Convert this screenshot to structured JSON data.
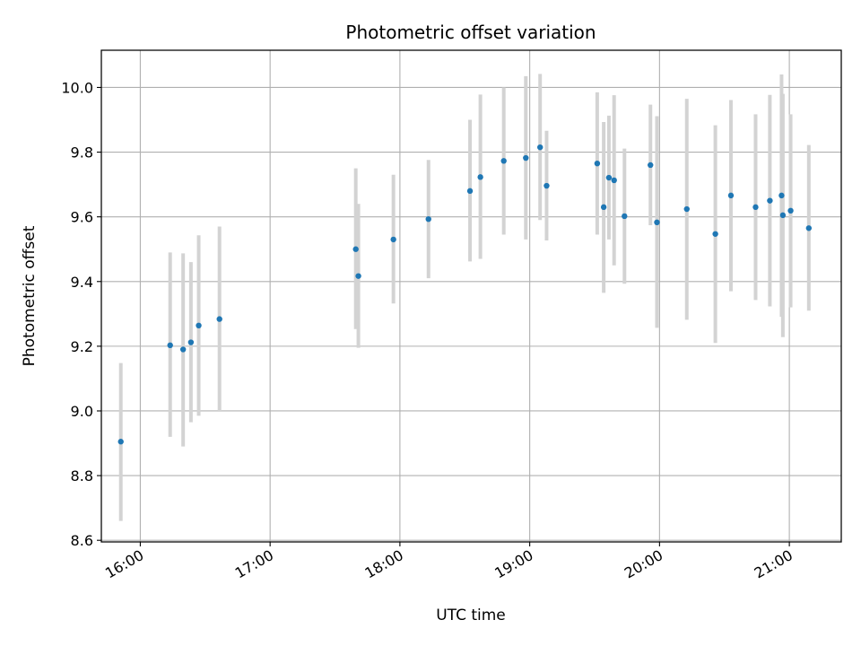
{
  "chart_data": {
    "type": "scatter",
    "title": "Photometric offset variation",
    "xlabel": "UTC time",
    "ylabel": "Photometric offset",
    "x_unit": "hours",
    "xlim": [
      15.7,
      21.4
    ],
    "ylim": [
      8.595,
      10.115
    ],
    "grid": true,
    "x_ticks": [
      {
        "value": 16,
        "label": "16:00"
      },
      {
        "value": 17,
        "label": "17:00"
      },
      {
        "value": 18,
        "label": "18:00"
      },
      {
        "value": 19,
        "label": "19:00"
      },
      {
        "value": 20,
        "label": "20:00"
      },
      {
        "value": 21,
        "label": "21:00"
      }
    ],
    "y_ticks": [
      {
        "value": 8.6,
        "label": "8.6"
      },
      {
        "value": 8.8,
        "label": "8.8"
      },
      {
        "value": 9.0,
        "label": "9.0"
      },
      {
        "value": 9.2,
        "label": "9.2"
      },
      {
        "value": 9.4,
        "label": "9.4"
      },
      {
        "value": 9.6,
        "label": "9.6"
      },
      {
        "value": 9.8,
        "label": "9.8"
      },
      {
        "value": 10.0,
        "label": "10.0"
      }
    ],
    "series": [
      {
        "name": "offset",
        "point_color": "#1f77b4",
        "errorbar_color": "#d3d3d3",
        "points": [
          {
            "x": 15.85,
            "y": 8.905,
            "ylow": 8.66,
            "yhigh": 9.148
          },
          {
            "x": 16.23,
            "y": 9.203,
            "ylow": 8.92,
            "yhigh": 9.49
          },
          {
            "x": 16.33,
            "y": 9.19,
            "ylow": 8.89,
            "yhigh": 9.487
          },
          {
            "x": 16.39,
            "y": 9.212,
            "ylow": 8.965,
            "yhigh": 9.46
          },
          {
            "x": 16.45,
            "y": 9.264,
            "ylow": 8.985,
            "yhigh": 9.543
          },
          {
            "x": 16.61,
            "y": 9.284,
            "ylow": 9.0,
            "yhigh": 9.57
          },
          {
            "x": 17.66,
            "y": 9.5,
            "ylow": 9.253,
            "yhigh": 9.75
          },
          {
            "x": 17.68,
            "y": 9.417,
            "ylow": 9.195,
            "yhigh": 9.64
          },
          {
            "x": 17.95,
            "y": 9.53,
            "ylow": 9.332,
            "yhigh": 9.73
          },
          {
            "x": 18.22,
            "y": 9.593,
            "ylow": 9.41,
            "yhigh": 9.776
          },
          {
            "x": 18.54,
            "y": 9.68,
            "ylow": 9.462,
            "yhigh": 9.9
          },
          {
            "x": 18.62,
            "y": 9.723,
            "ylow": 9.47,
            "yhigh": 9.978
          },
          {
            "x": 18.8,
            "y": 9.773,
            "ylow": 9.545,
            "yhigh": 10.0
          },
          {
            "x": 18.97,
            "y": 9.782,
            "ylow": 9.53,
            "yhigh": 10.035
          },
          {
            "x": 19.08,
            "y": 9.815,
            "ylow": 9.59,
            "yhigh": 10.042
          },
          {
            "x": 19.13,
            "y": 9.696,
            "ylow": 9.527,
            "yhigh": 9.866
          },
          {
            "x": 19.52,
            "y": 9.765,
            "ylow": 9.545,
            "yhigh": 9.985
          },
          {
            "x": 19.57,
            "y": 9.63,
            "ylow": 9.365,
            "yhigh": 9.893
          },
          {
            "x": 19.61,
            "y": 9.721,
            "ylow": 9.53,
            "yhigh": 9.913
          },
          {
            "x": 19.65,
            "y": 9.713,
            "ylow": 9.45,
            "yhigh": 9.976
          },
          {
            "x": 19.73,
            "y": 9.602,
            "ylow": 9.393,
            "yhigh": 9.811
          },
          {
            "x": 19.93,
            "y": 9.76,
            "ylow": 9.574,
            "yhigh": 9.947
          },
          {
            "x": 19.98,
            "y": 9.583,
            "ylow": 9.257,
            "yhigh": 9.911
          },
          {
            "x": 20.21,
            "y": 9.624,
            "ylow": 9.282,
            "yhigh": 9.965
          },
          {
            "x": 20.43,
            "y": 9.547,
            "ylow": 9.21,
            "yhigh": 9.883
          },
          {
            "x": 20.55,
            "y": 9.666,
            "ylow": 9.37,
            "yhigh": 9.961
          },
          {
            "x": 20.74,
            "y": 9.63,
            "ylow": 9.343,
            "yhigh": 9.917
          },
          {
            "x": 20.85,
            "y": 9.65,
            "ylow": 9.323,
            "yhigh": 9.977
          },
          {
            "x": 20.94,
            "y": 9.666,
            "ylow": 9.291,
            "yhigh": 10.04
          },
          {
            "x": 20.95,
            "y": 9.605,
            "ylow": 9.228,
            "yhigh": 9.98
          },
          {
            "x": 21.01,
            "y": 9.619,
            "ylow": 9.32,
            "yhigh": 9.917
          },
          {
            "x": 21.15,
            "y": 9.565,
            "ylow": 9.31,
            "yhigh": 9.822
          }
        ]
      }
    ]
  }
}
